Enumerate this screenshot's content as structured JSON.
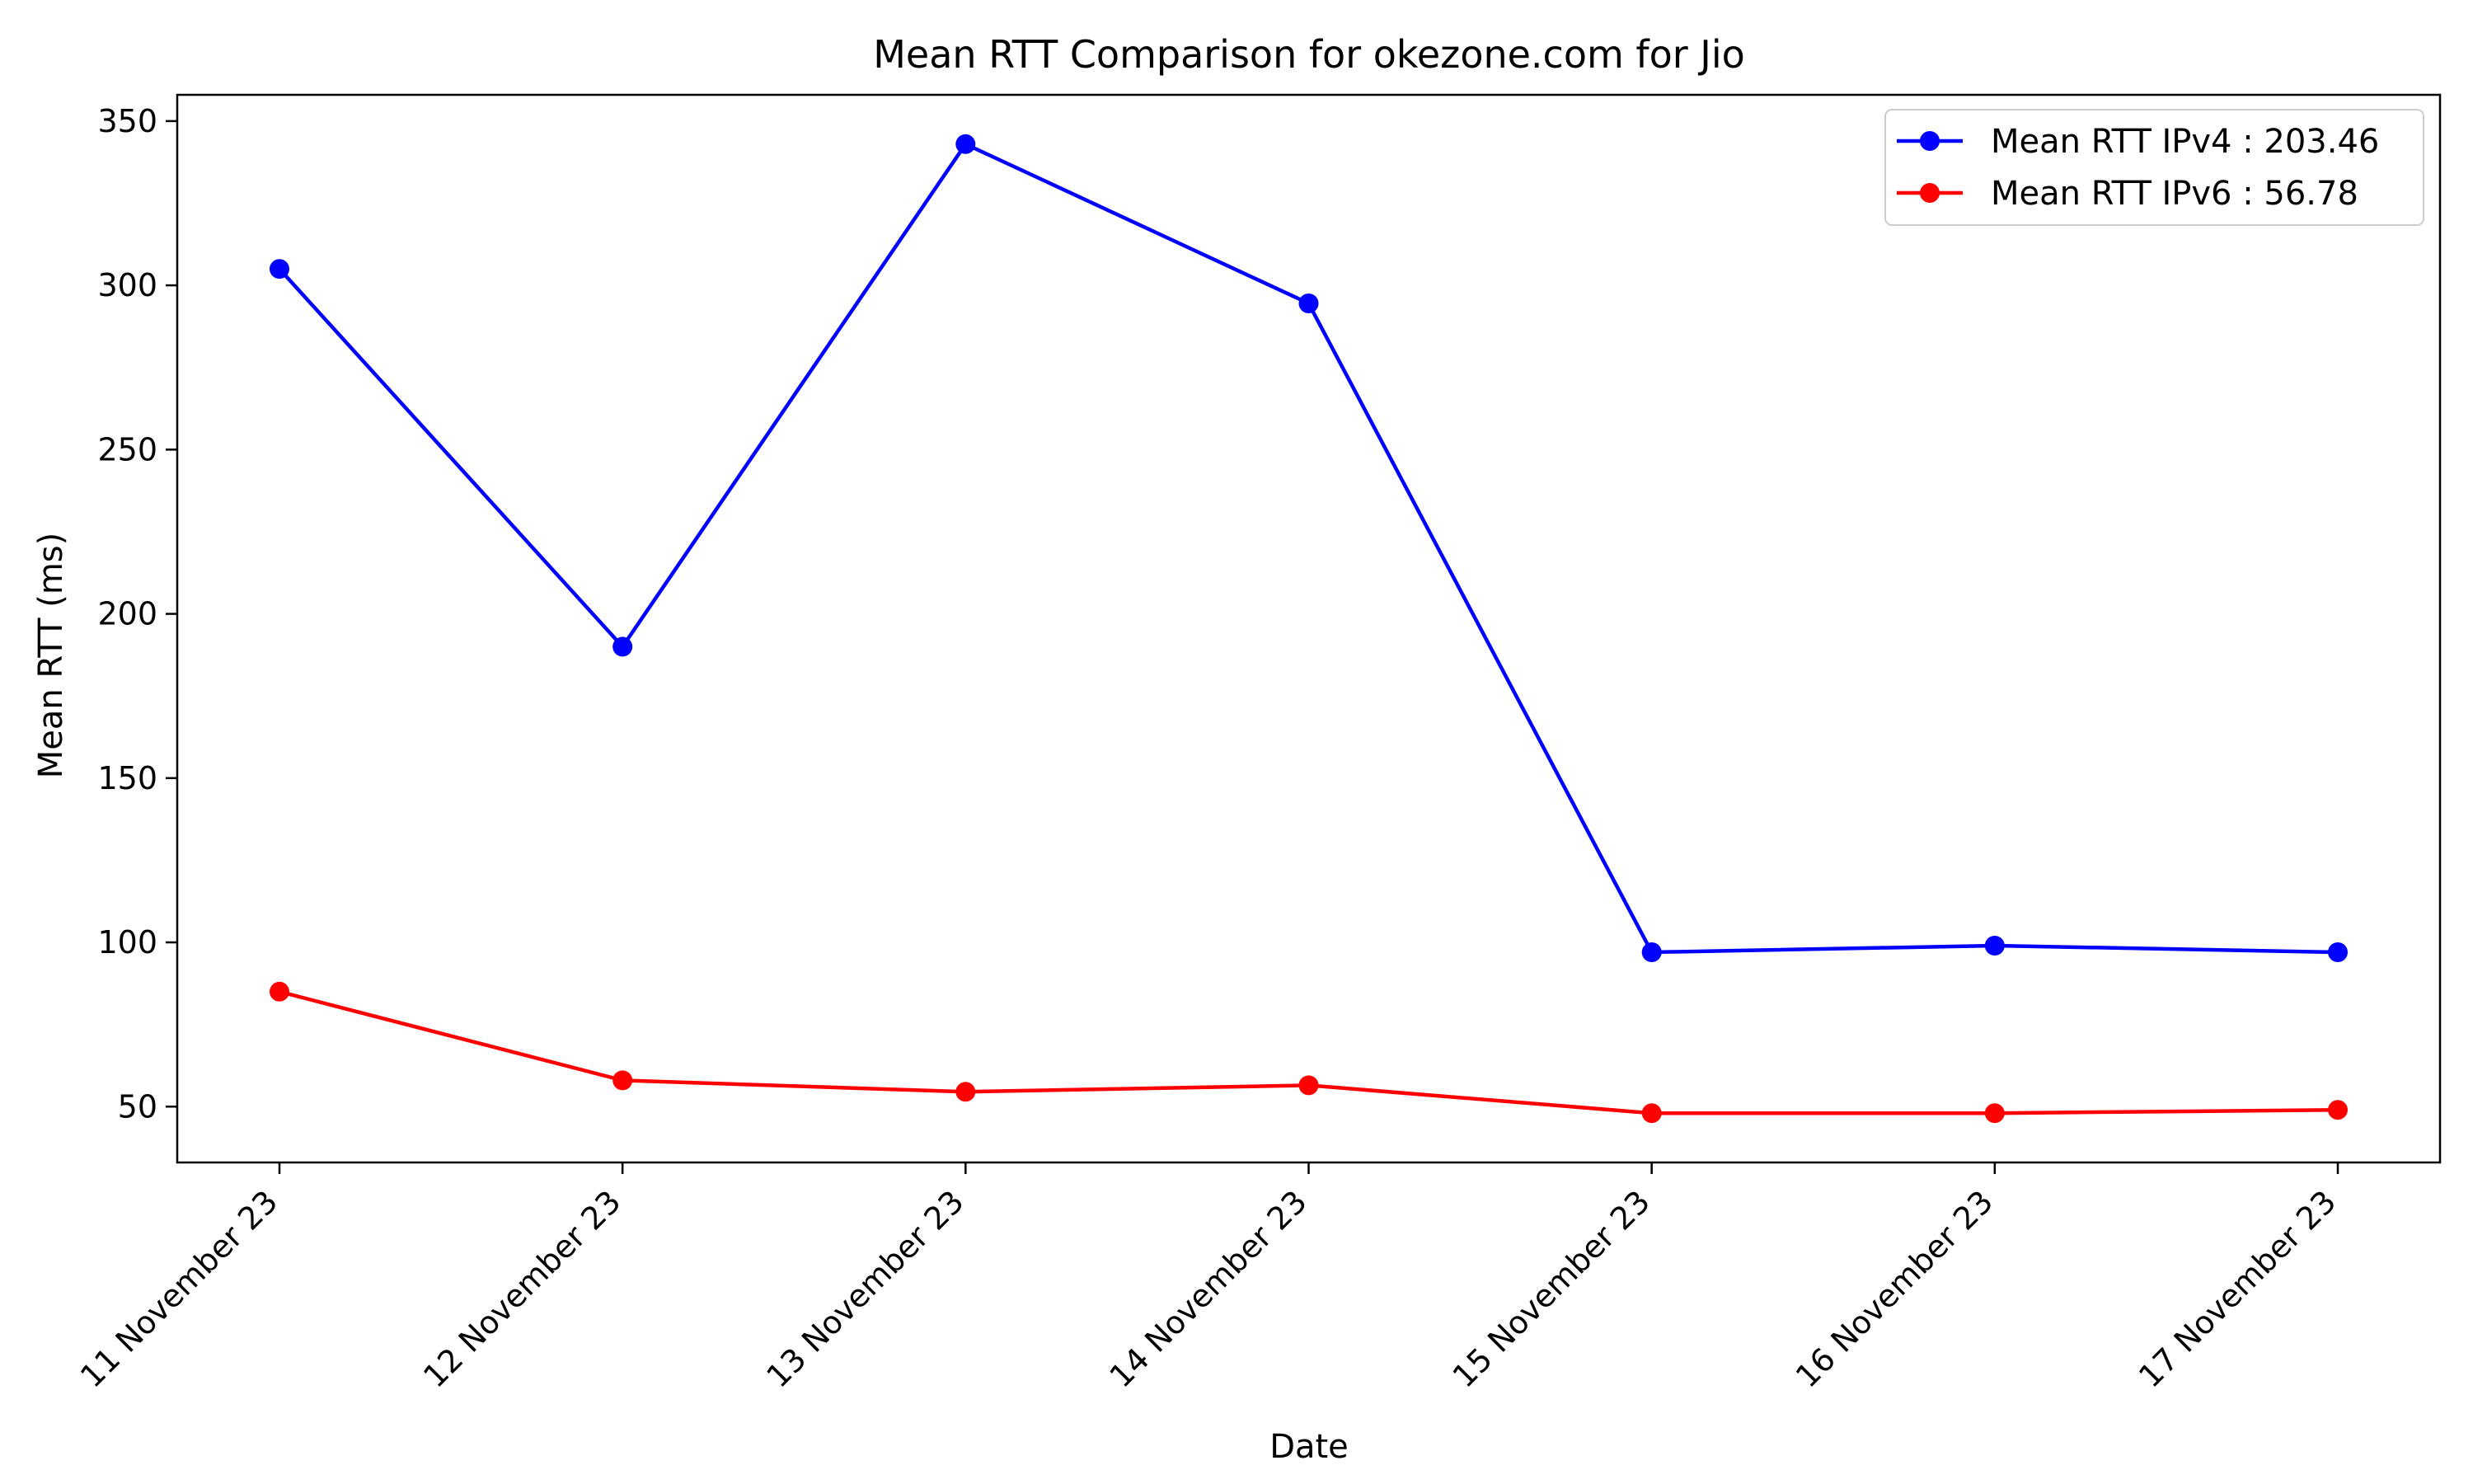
{
  "chart_data": {
    "type": "line",
    "title": "Mean RTT Comparison for okezone.com for Jio",
    "xlabel": "Date",
    "ylabel": "Mean RTT (ms)",
    "categories": [
      "11 November 23",
      "12 November 23",
      "13 November 23",
      "14 November 23",
      "15 November 23",
      "16 November 23",
      "17 November 23"
    ],
    "series": [
      {
        "name": "Mean RTT IPv4 : 203.46",
        "color": "#0000ff",
        "values": [
          305,
          190,
          343,
          294.5,
          97,
          99,
          97
        ]
      },
      {
        "name": "Mean RTT IPv6 : 56.78",
        "color": "#ff0000",
        "values": [
          85,
          58,
          54.5,
          56.5,
          48,
          48,
          49
        ]
      }
    ],
    "ylim": [
      33,
      358
    ],
    "yticks": [
      50,
      100,
      150,
      200,
      250,
      300,
      350
    ],
    "legend": "top-right",
    "grid": false
  }
}
